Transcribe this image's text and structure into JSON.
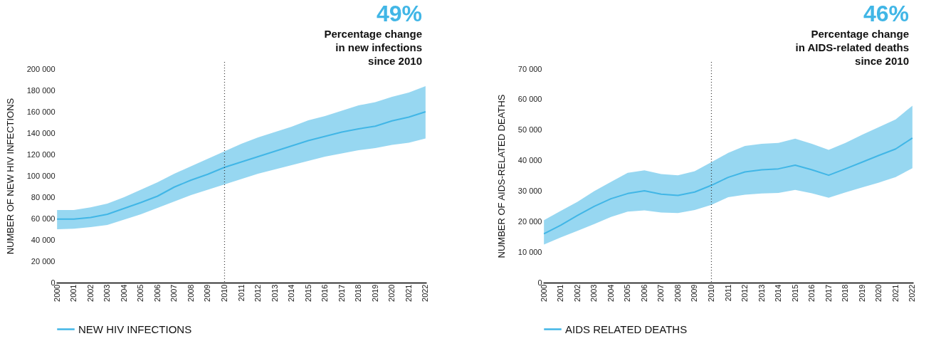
{
  "chart_data": [
    {
      "type": "line",
      "ylabel": "NUMBER OF NEW HIV INFECTIONS",
      "annotations": [
        "49%",
        "Percentage change\nin new infections\nsince 2010"
      ],
      "categories": [
        "2000",
        "2001",
        "2002",
        "2003",
        "2004",
        "2005",
        "2006",
        "2007",
        "2008",
        "2009",
        "2010",
        "2011",
        "2012",
        "2013",
        "2014",
        "2015",
        "2016",
        "2017",
        "2018",
        "2019",
        "2020",
        "2021",
        "2022"
      ],
      "series": [
        {
          "name": "NEW HIV INFECTIONS",
          "color": "#41b6e6",
          "values": [
            59500,
            59500,
            61000,
            64000,
            69500,
            75000,
            81000,
            89500,
            96000,
            101500,
            108000,
            113000,
            118000,
            123000,
            128000,
            133000,
            137000,
            141000,
            144000,
            146500,
            151500,
            155000,
            160000
          ],
          "lower": [
            50000,
            50500,
            52000,
            54000,
            59000,
            64000,
            70000,
            76000,
            82000,
            87000,
            92000,
            97000,
            102000,
            106000,
            110000,
            114000,
            118000,
            121000,
            124000,
            126000,
            129000,
            131000,
            135000
          ],
          "upper": [
            68000,
            68000,
            70500,
            74000,
            80000,
            87000,
            94000,
            102000,
            109000,
            116000,
            123000,
            130000,
            136000,
            141000,
            146000,
            152000,
            156000,
            161000,
            166000,
            169000,
            174000,
            178000,
            184000
          ]
        }
      ],
      "ylim": [
        0,
        200000
      ],
      "yticks": [
        0,
        {
          "value": 20000,
          "label": "20 000"
        },
        {
          "value": 40000,
          "label": "40 000"
        },
        {
          "value": 60000,
          "label": "60 000"
        },
        {
          "value": 80000,
          "label": "80 000"
        },
        {
          "value": 100000,
          "label": "100 000"
        },
        {
          "value": 120000,
          "label": "120 000"
        },
        {
          "value": 140000,
          "label": "140 000"
        },
        {
          "value": 160000,
          "label": "160 000"
        },
        {
          "value": 180000,
          "label": "180 000"
        },
        {
          "value": 200000,
          "label": "200 000"
        }
      ],
      "ref_lines": [
        {
          "axis": "x",
          "value": "2010",
          "line_style": "dotted",
          "color": "#333333"
        }
      ],
      "legend": "bottom left",
      "grid": false,
      "marker": "none",
      "line_style": "solid"
    },
    {
      "type": "line",
      "ylabel": "NUMBER OF AIDS-RELATED DEATHS",
      "annotations": [
        "46%",
        "Percentage change\nin AIDS-related deaths\nsince 2010"
      ],
      "categories": [
        "2000",
        "2001",
        "2002",
        "2003",
        "2004",
        "2005",
        "2006",
        "2007",
        "2008",
        "2009",
        "2010",
        "2011",
        "2012",
        "2013",
        "2014",
        "2015",
        "2016",
        "2017",
        "2018",
        "2019",
        "2020",
        "2021",
        "2022"
      ],
      "series": [
        {
          "name": "AIDS RELATED DEATHS",
          "color": "#41b6e6",
          "values": [
            16000,
            18800,
            22000,
            25000,
            27500,
            29200,
            30100,
            29000,
            28600,
            29700,
            31900,
            34500,
            36300,
            37000,
            37300,
            38500,
            37000,
            35200,
            37300,
            39500,
            41700,
            43800,
            47400
          ],
          "lower": [
            12500,
            14800,
            17000,
            19200,
            21500,
            23300,
            23700,
            23000,
            22800,
            23800,
            25500,
            28000,
            28800,
            29200,
            29400,
            30400,
            29300,
            27800,
            29600,
            31200,
            32800,
            34600,
            37500
          ],
          "upper": [
            20500,
            23500,
            26500,
            30000,
            33000,
            36000,
            36800,
            35600,
            35200,
            36500,
            39500,
            42500,
            44800,
            45500,
            45800,
            47200,
            45500,
            43500,
            45800,
            48500,
            51000,
            53500,
            58000
          ]
        }
      ],
      "ylim": [
        0,
        70000
      ],
      "yticks": [
        0,
        {
          "value": 10000,
          "label": "10 000"
        },
        {
          "value": 20000,
          "label": "20 000"
        },
        {
          "value": 30000,
          "label": "30 000"
        },
        {
          "value": 40000,
          "label": "40 000"
        },
        {
          "value": 50000,
          "label": "50 000"
        },
        {
          "value": 60000,
          "label": "60 000"
        },
        {
          "value": 70000,
          "label": "70 000"
        }
      ],
      "ref_lines": [
        {
          "axis": "x",
          "value": "2010",
          "line_style": "dotted",
          "color": "#333333"
        }
      ],
      "legend": "bottom left",
      "grid": false,
      "marker": "none",
      "line_style": "solid"
    }
  ]
}
